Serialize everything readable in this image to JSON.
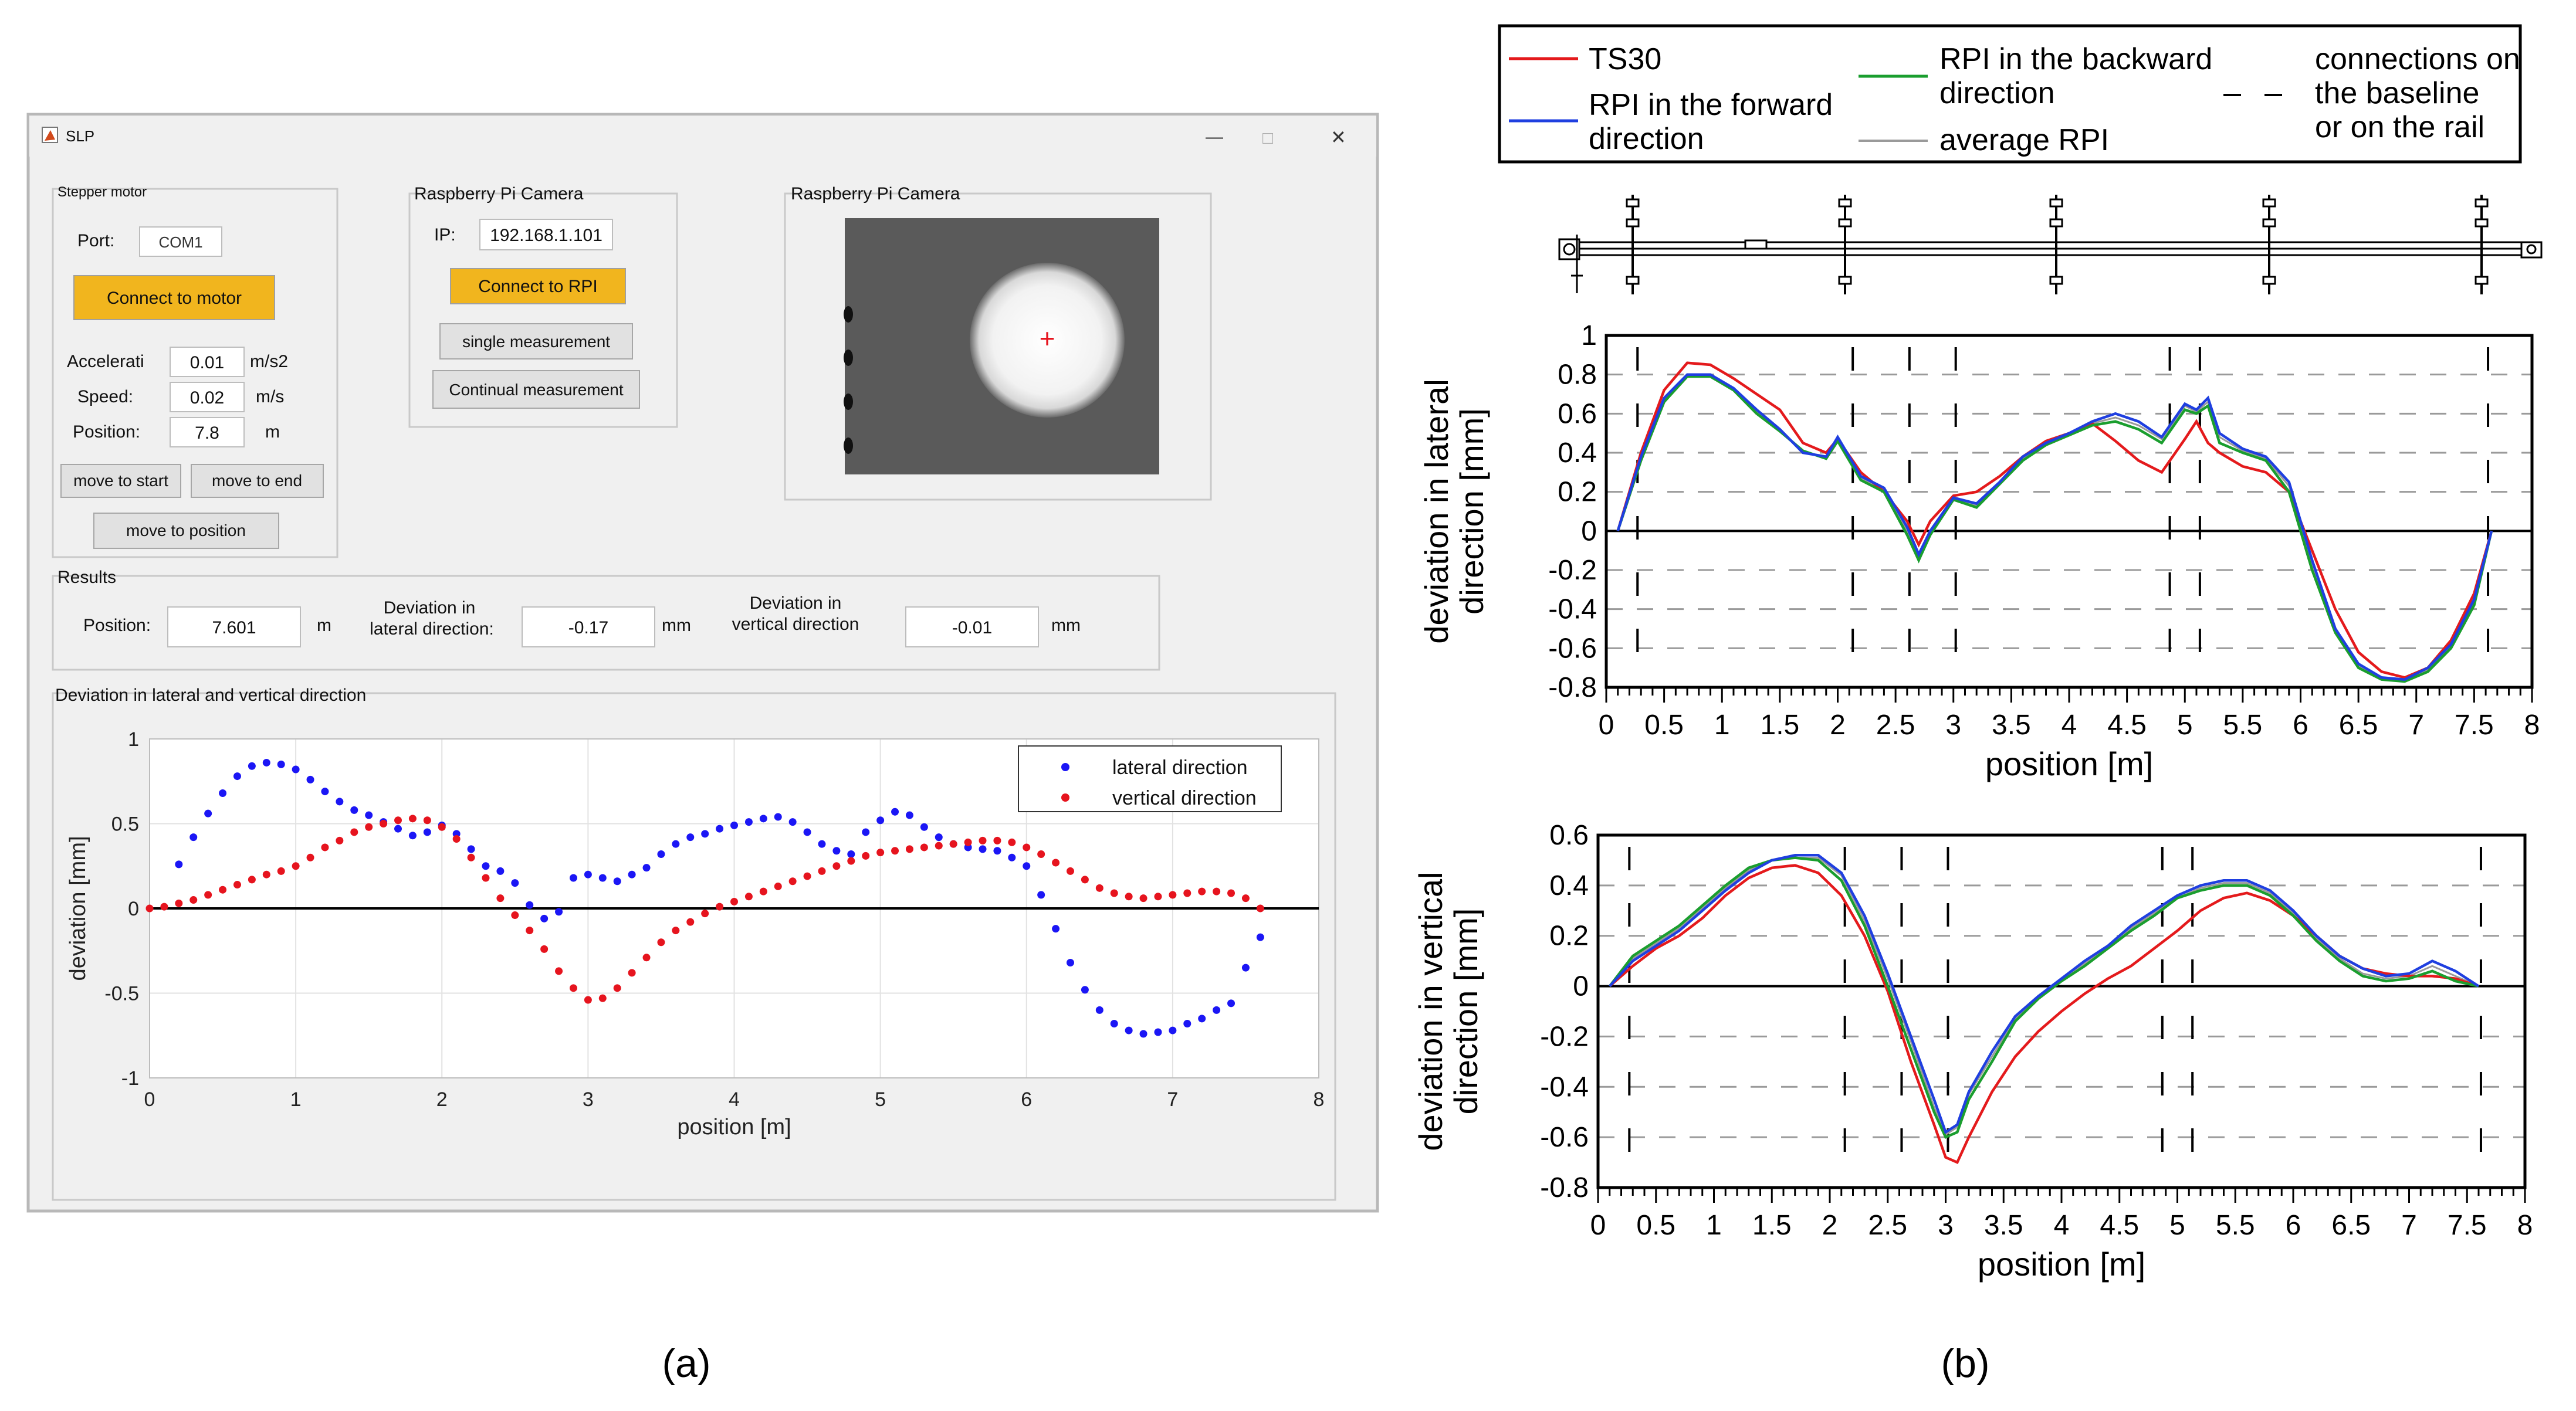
{
  "captions": {
    "a": "(a)",
    "b": "(b)"
  },
  "app": {
    "title": "SLP",
    "win_buttons": {
      "minimize": "—",
      "maximize": "□",
      "close": "✕"
    },
    "stepper": {
      "title": "Stepper motor",
      "port_label": "Port:",
      "port_value": "COM1",
      "connect_label": "Connect to motor",
      "accel_label": "Accelerati",
      "accel_value": "0.01",
      "accel_unit": "m/s2",
      "speed_label": "Speed:",
      "speed_value": "0.02",
      "speed_unit": "m/s",
      "pos_label": "Position:",
      "pos_value": "7.8",
      "pos_unit": "m",
      "start_label": "move to start",
      "end_label": "move to end",
      "position_label": "move to position"
    },
    "rpi": {
      "title": "Raspberry Pi Camera",
      "ip_label": "IP:",
      "ip_value": "192.168.1.101",
      "connect_label": "Connect to RPI",
      "single_label": "single measurement",
      "continual_label": "Continual measurement"
    },
    "camera": {
      "title": "Raspberry Pi Camera",
      "crosshair": "+"
    },
    "results": {
      "title": "Results",
      "pos_label": "Position:",
      "pos_value": "7.601",
      "pos_unit": "m",
      "lat_label1": "Deviation in",
      "lat_label2": "lateral direction:",
      "lat_value": "-0.17",
      "lat_unit": "mm",
      "vert_label1": "Deviation in",
      "vert_label2": "vertical direction",
      "vert_value": "-0.01",
      "vert_unit": "mm"
    },
    "plot_panel": {
      "title": "Deviation in lateral and vertical direction"
    }
  },
  "colors": {
    "red": "#e41a1c",
    "blue": "#1f3fe0",
    "green": "#1a9e2e",
    "gray": "#9a9a9a",
    "orange": "#f1b51e",
    "uiblue": "#1b16f5",
    "uired": "#e6141e"
  },
  "legend_b": {
    "ts30": "TS30",
    "forward1": "RPI in the forward",
    "forward2": "direction",
    "backward1": "RPI in the backward",
    "backward2": "direction",
    "average": "average RPI",
    "conn1": "connections on",
    "conn2": "the baseline",
    "conn3": "or on the rail"
  },
  "chart_data": [
    {
      "type": "scatter",
      "title": "",
      "xlabel": "position [m]",
      "ylabel": "deviation [mm]",
      "xlim": [
        0,
        8
      ],
      "ylim": [
        -1,
        1
      ],
      "xticks": [
        "0",
        "1",
        "2",
        "3",
        "4",
        "5",
        "6",
        "7",
        "8"
      ],
      "yticks": [
        "1",
        "0.5",
        "0",
        "-0.5",
        "-1"
      ],
      "legend": [
        "lateral direction",
        "vertical direction"
      ],
      "series": [
        {
          "name": "lateral direction",
          "x": [
            0.2,
            0.3,
            0.4,
            0.5,
            0.6,
            0.7,
            0.8,
            0.9,
            1.0,
            1.1,
            1.2,
            1.3,
            1.4,
            1.5,
            1.6,
            1.7,
            1.8,
            1.9,
            2.0,
            2.1,
            2.2,
            2.3,
            2.4,
            2.5,
            2.6,
            2.7,
            2.8,
            2.9,
            3.0,
            3.1,
            3.2,
            3.3,
            3.4,
            3.5,
            3.6,
            3.7,
            3.8,
            3.9,
            4.0,
            4.1,
            4.2,
            4.3,
            4.4,
            4.5,
            4.6,
            4.7,
            4.8,
            4.9,
            5.0,
            5.1,
            5.2,
            5.3,
            5.4,
            5.5,
            5.6,
            5.7,
            5.8,
            5.9,
            6.0,
            6.1,
            6.2,
            6.3,
            6.4,
            6.5,
            6.6,
            6.7,
            6.8,
            6.9,
            7.0,
            7.1,
            7.2,
            7.3,
            7.4,
            7.5,
            7.6
          ],
          "y": [
            0.26,
            0.42,
            0.56,
            0.68,
            0.78,
            0.84,
            0.86,
            0.85,
            0.82,
            0.76,
            0.69,
            0.63,
            0.58,
            0.55,
            0.51,
            0.47,
            0.43,
            0.45,
            0.49,
            0.44,
            0.35,
            0.25,
            0.22,
            0.15,
            0.02,
            -0.06,
            -0.02,
            0.18,
            0.2,
            0.18,
            0.16,
            0.2,
            0.24,
            0.32,
            0.38,
            0.42,
            0.44,
            0.47,
            0.49,
            0.51,
            0.53,
            0.54,
            0.51,
            0.45,
            0.38,
            0.34,
            0.32,
            0.45,
            0.52,
            0.57,
            0.55,
            0.48,
            0.42,
            0.38,
            0.36,
            0.35,
            0.34,
            0.3,
            0.25,
            0.08,
            -0.12,
            -0.32,
            -0.48,
            -0.6,
            -0.68,
            -0.72,
            -0.74,
            -0.73,
            -0.72,
            -0.68,
            -0.65,
            -0.6,
            -0.56,
            -0.35,
            -0.17
          ]
        },
        {
          "name": "vertical direction",
          "x": [
            0.0,
            0.1,
            0.2,
            0.3,
            0.4,
            0.5,
            0.6,
            0.7,
            0.8,
            0.9,
            1.0,
            1.1,
            1.2,
            1.3,
            1.4,
            1.5,
            1.6,
            1.7,
            1.8,
            1.9,
            2.0,
            2.1,
            2.2,
            2.3,
            2.4,
            2.5,
            2.6,
            2.7,
            2.8,
            2.9,
            3.0,
            3.1,
            3.2,
            3.3,
            3.4,
            3.5,
            3.6,
            3.7,
            3.8,
            3.9,
            4.0,
            4.1,
            4.2,
            4.3,
            4.4,
            4.5,
            4.6,
            4.7,
            4.8,
            4.9,
            5.0,
            5.1,
            5.2,
            5.3,
            5.4,
            5.5,
            5.6,
            5.7,
            5.8,
            5.9,
            6.0,
            6.1,
            6.2,
            6.3,
            6.4,
            6.5,
            6.6,
            6.7,
            6.8,
            6.9,
            7.0,
            7.1,
            7.2,
            7.3,
            7.4,
            7.5,
            7.6
          ],
          "y": [
            0.0,
            0.01,
            0.03,
            0.05,
            0.08,
            0.11,
            0.14,
            0.17,
            0.2,
            0.22,
            0.25,
            0.3,
            0.36,
            0.4,
            0.45,
            0.48,
            0.5,
            0.52,
            0.53,
            0.52,
            0.48,
            0.41,
            0.3,
            0.18,
            0.06,
            -0.04,
            -0.13,
            -0.24,
            -0.37,
            -0.47,
            -0.54,
            -0.53,
            -0.47,
            -0.38,
            -0.29,
            -0.2,
            -0.13,
            -0.08,
            -0.03,
            0.01,
            0.04,
            0.07,
            0.1,
            0.13,
            0.16,
            0.19,
            0.22,
            0.25,
            0.28,
            0.31,
            0.33,
            0.34,
            0.35,
            0.36,
            0.37,
            0.38,
            0.39,
            0.4,
            0.4,
            0.39,
            0.36,
            0.32,
            0.27,
            0.22,
            0.17,
            0.12,
            0.09,
            0.07,
            0.06,
            0.07,
            0.08,
            0.09,
            0.1,
            0.1,
            0.09,
            0.06,
            0.0
          ]
        }
      ]
    },
    {
      "type": "line",
      "xlabel": "position [m]",
      "ylabel": "deviation in lateral direction [mm]",
      "xlim": [
        0,
        8
      ],
      "ylim": [
        -0.8,
        1
      ],
      "xticks": [
        "0",
        "0.5",
        "1",
        "1.5",
        "2",
        "2.5",
        "3",
        "3.5",
        "4",
        "4.5",
        "5",
        "5.5",
        "6",
        "6.5",
        "7",
        "7.5",
        "8"
      ],
      "yticks": [
        "1",
        "0.8",
        "0.6",
        "0.4",
        "0.2",
        "0",
        "-0.2",
        "-0.4",
        "-0.6",
        "-0.8"
      ],
      "connections_x": [
        0.27,
        2.13,
        2.62,
        3.02,
        4.87,
        5.13,
        7.62
      ],
      "x": [
        0.1,
        0.3,
        0.5,
        0.7,
        0.9,
        1.1,
        1.3,
        1.5,
        1.7,
        1.9,
        2.0,
        2.2,
        2.4,
        2.6,
        2.7,
        2.8,
        3.0,
        3.2,
        3.4,
        3.6,
        3.8,
        4.0,
        4.2,
        4.4,
        4.6,
        4.8,
        5.0,
        5.1,
        5.2,
        5.3,
        5.5,
        5.7,
        5.9,
        6.1,
        6.3,
        6.5,
        6.7,
        6.9,
        7.1,
        7.3,
        7.5,
        7.65
      ],
      "series": [
        {
          "name": "TS30",
          "values": [
            0.0,
            0.4,
            0.72,
            0.86,
            0.85,
            0.78,
            0.7,
            0.62,
            0.45,
            0.4,
            0.47,
            0.3,
            0.2,
            0.05,
            -0.07,
            0.05,
            0.18,
            0.2,
            0.28,
            0.38,
            0.46,
            0.5,
            0.55,
            0.46,
            0.36,
            0.3,
            0.47,
            0.56,
            0.45,
            0.4,
            0.33,
            0.3,
            0.2,
            -0.1,
            -0.4,
            -0.62,
            -0.72,
            -0.75,
            -0.7,
            -0.56,
            -0.32,
            0.0
          ]
        },
        {
          "name": "RPI in the forward direction",
          "values": [
            0.0,
            0.38,
            0.68,
            0.8,
            0.8,
            0.73,
            0.62,
            0.52,
            0.4,
            0.38,
            0.48,
            0.28,
            0.22,
            0.02,
            -0.12,
            0.0,
            0.17,
            0.14,
            0.25,
            0.38,
            0.45,
            0.5,
            0.56,
            0.6,
            0.56,
            0.48,
            0.65,
            0.62,
            0.68,
            0.5,
            0.42,
            0.38,
            0.25,
            -0.15,
            -0.5,
            -0.68,
            -0.75,
            -0.76,
            -0.7,
            -0.58,
            -0.35,
            0.0
          ]
        },
        {
          "name": "RPI in the backward direction",
          "values": [
            0.0,
            0.36,
            0.66,
            0.79,
            0.79,
            0.72,
            0.6,
            0.51,
            0.41,
            0.37,
            0.46,
            0.26,
            0.2,
            -0.02,
            -0.15,
            -0.02,
            0.16,
            0.12,
            0.24,
            0.36,
            0.44,
            0.49,
            0.54,
            0.56,
            0.52,
            0.45,
            0.62,
            0.6,
            0.64,
            0.45,
            0.4,
            0.36,
            0.2,
            -0.2,
            -0.52,
            -0.7,
            -0.76,
            -0.77,
            -0.72,
            -0.6,
            -0.38,
            0.0
          ]
        },
        {
          "name": "average RPI",
          "values": [
            0.0,
            0.37,
            0.67,
            0.8,
            0.8,
            0.72,
            0.61,
            0.52,
            0.4,
            0.38,
            0.47,
            0.27,
            0.21,
            0.0,
            -0.13,
            -0.01,
            0.17,
            0.13,
            0.25,
            0.37,
            0.45,
            0.5,
            0.55,
            0.58,
            0.54,
            0.47,
            0.64,
            0.61,
            0.66,
            0.48,
            0.41,
            0.37,
            0.23,
            -0.17,
            -0.51,
            -0.69,
            -0.75,
            -0.76,
            -0.71,
            -0.59,
            -0.36,
            0.0
          ]
        }
      ]
    },
    {
      "type": "line",
      "xlabel": "position [m]",
      "ylabel": "deviation in vertical direction [mm]",
      "xlim": [
        0,
        8
      ],
      "ylim": [
        -0.8,
        0.6
      ],
      "xticks": [
        "0",
        "0.5",
        "1",
        "1.5",
        "2",
        "2.5",
        "3",
        "3.5",
        "4",
        "4.5",
        "5",
        "5.5",
        "6",
        "6.5",
        "7",
        "7.5",
        "8"
      ],
      "yticks": [
        "0.6",
        "0.4",
        "0.2",
        "0",
        "-0.2",
        "-0.4",
        "-0.6",
        "-0.8"
      ],
      "connections_x": [
        0.27,
        2.13,
        2.62,
        3.02,
        4.87,
        5.13,
        7.62
      ],
      "x": [
        0.1,
        0.3,
        0.5,
        0.7,
        0.9,
        1.1,
        1.3,
        1.5,
        1.7,
        1.9,
        2.1,
        2.3,
        2.5,
        2.7,
        2.9,
        3.0,
        3.1,
        3.2,
        3.4,
        3.6,
        3.8,
        4.0,
        4.2,
        4.4,
        4.6,
        4.8,
        5.0,
        5.2,
        5.4,
        5.6,
        5.8,
        6.0,
        6.2,
        6.4,
        6.6,
        6.8,
        7.0,
        7.2,
        7.4,
        7.6
      ],
      "series": [
        {
          "name": "TS30",
          "values": [
            0.0,
            0.08,
            0.15,
            0.2,
            0.27,
            0.36,
            0.43,
            0.47,
            0.48,
            0.45,
            0.36,
            0.2,
            -0.02,
            -0.3,
            -0.55,
            -0.68,
            -0.7,
            -0.6,
            -0.42,
            -0.28,
            -0.18,
            -0.1,
            -0.03,
            0.03,
            0.08,
            0.15,
            0.22,
            0.3,
            0.35,
            0.37,
            0.34,
            0.28,
            0.2,
            0.12,
            0.07,
            0.05,
            0.04,
            0.04,
            0.03,
            0.0
          ]
        },
        {
          "name": "RPI in the forward direction",
          "values": [
            0.0,
            0.1,
            0.16,
            0.22,
            0.3,
            0.38,
            0.45,
            0.5,
            0.52,
            0.52,
            0.45,
            0.28,
            0.05,
            -0.2,
            -0.45,
            -0.58,
            -0.55,
            -0.42,
            -0.26,
            -0.12,
            -0.04,
            0.03,
            0.1,
            0.16,
            0.24,
            0.3,
            0.36,
            0.4,
            0.42,
            0.42,
            0.38,
            0.3,
            0.2,
            0.12,
            0.07,
            0.04,
            0.05,
            0.1,
            0.06,
            0.0
          ]
        },
        {
          "name": "RPI in the backward direction",
          "values": [
            0.0,
            0.12,
            0.18,
            0.24,
            0.32,
            0.4,
            0.47,
            0.5,
            0.51,
            0.5,
            0.42,
            0.24,
            0.0,
            -0.25,
            -0.5,
            -0.6,
            -0.58,
            -0.45,
            -0.3,
            -0.14,
            -0.05,
            0.02,
            0.08,
            0.15,
            0.22,
            0.28,
            0.35,
            0.38,
            0.4,
            0.4,
            0.36,
            0.28,
            0.18,
            0.1,
            0.04,
            0.02,
            0.03,
            0.06,
            0.02,
            0.0
          ]
        },
        {
          "name": "average RPI",
          "values": [
            0.0,
            0.11,
            0.17,
            0.23,
            0.31,
            0.39,
            0.46,
            0.5,
            0.51,
            0.51,
            0.44,
            0.26,
            0.03,
            -0.22,
            -0.48,
            -0.59,
            -0.56,
            -0.43,
            -0.28,
            -0.13,
            -0.05,
            0.03,
            0.09,
            0.16,
            0.23,
            0.29,
            0.35,
            0.39,
            0.41,
            0.41,
            0.37,
            0.29,
            0.19,
            0.11,
            0.05,
            0.03,
            0.04,
            0.08,
            0.04,
            0.0
          ]
        }
      ]
    }
  ]
}
